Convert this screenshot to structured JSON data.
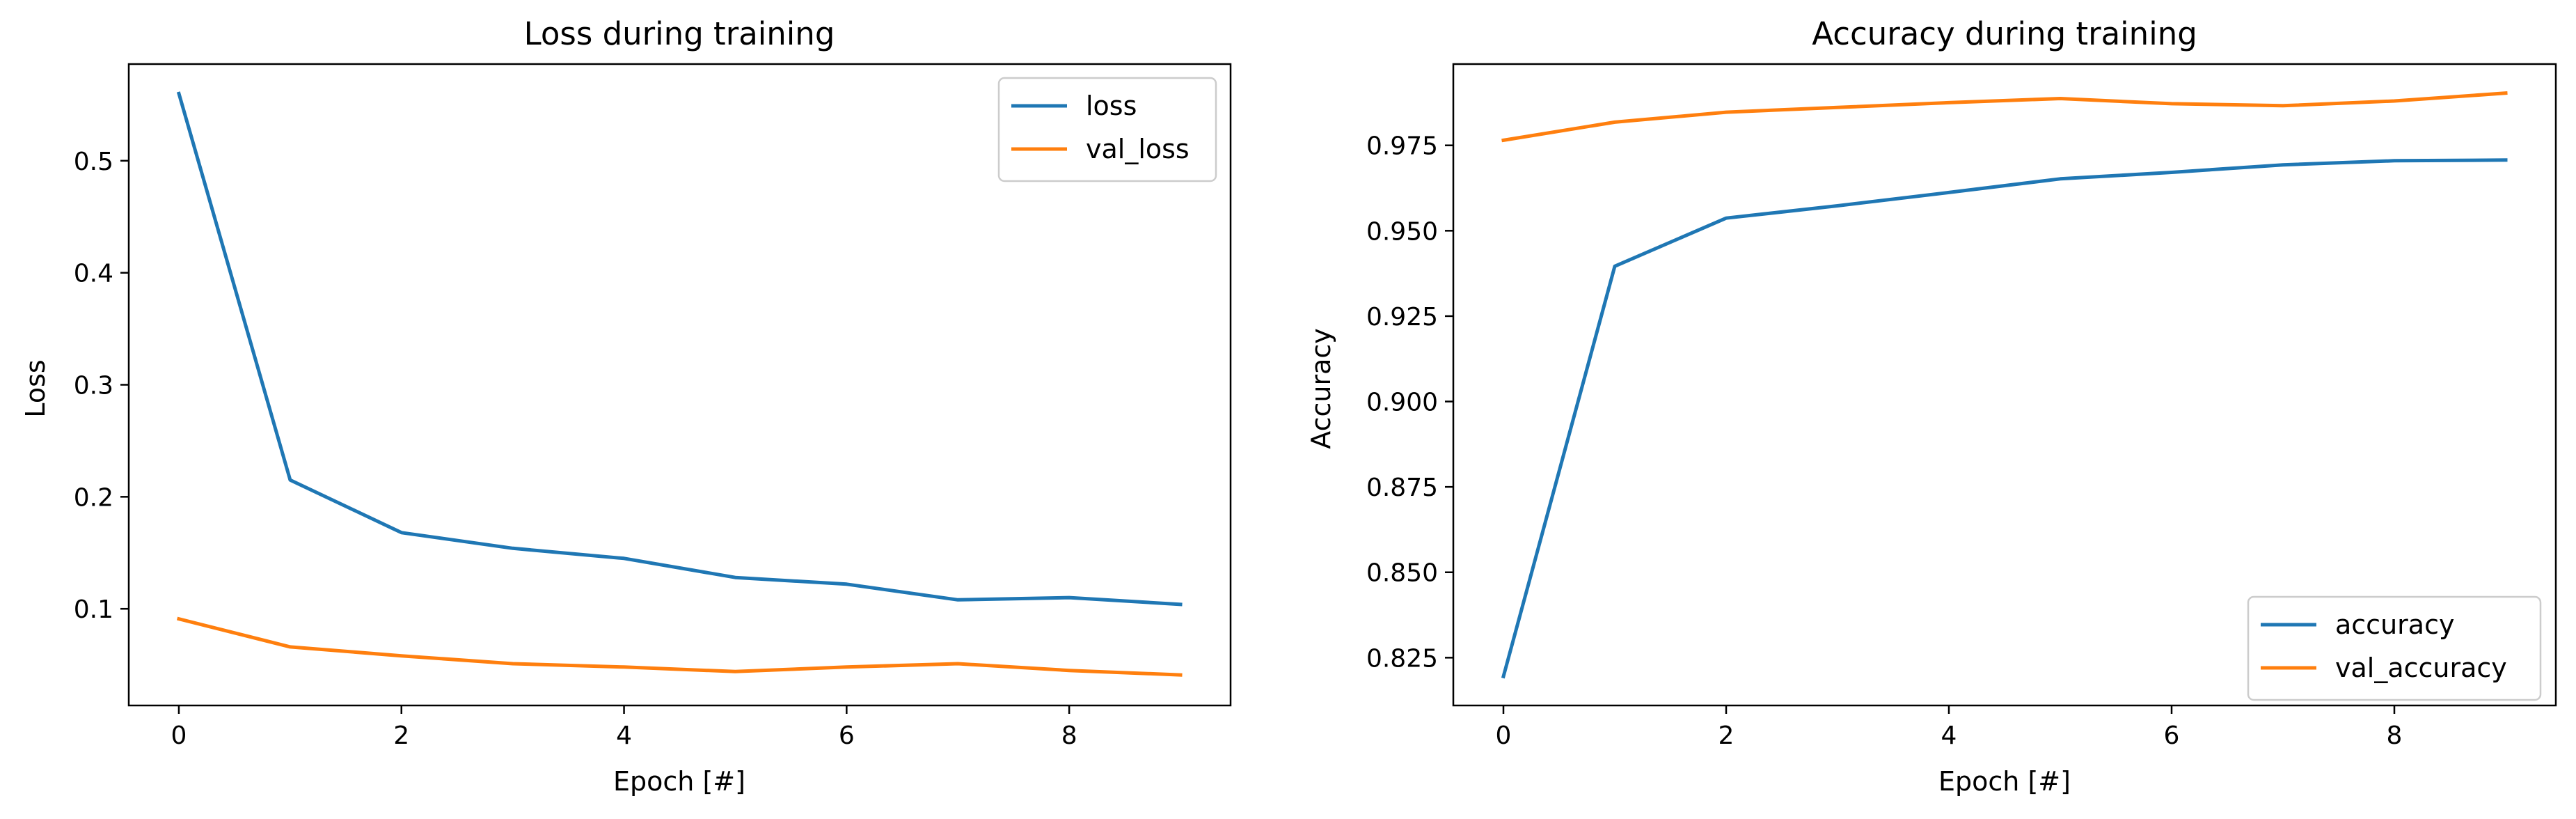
{
  "chart_data": [
    {
      "type": "line",
      "title": "Loss during training",
      "xlabel": "Epoch [#]",
      "ylabel": "Loss",
      "x": [
        0,
        1,
        2,
        3,
        4,
        5,
        6,
        7,
        8,
        9
      ],
      "series": [
        {
          "name": "loss",
          "color": "#1f77b4",
          "values": [
            0.56,
            0.215,
            0.168,
            0.154,
            0.145,
            0.128,
            0.122,
            0.108,
            0.11,
            0.104
          ]
        },
        {
          "name": "val_loss",
          "color": "#ff7f0e",
          "values": [
            0.091,
            0.066,
            0.058,
            0.051,
            0.048,
            0.044,
            0.048,
            0.051,
            0.045,
            0.041
          ]
        }
      ],
      "xlim": [
        -0.45,
        9.45
      ],
      "ylim": [
        0.0137,
        0.5863
      ],
      "xticks": [
        0,
        2,
        4,
        6,
        8
      ],
      "xtick_labels": [
        "0",
        "2",
        "4",
        "6",
        "8"
      ],
      "yticks": [
        0.1,
        0.2,
        0.3,
        0.4,
        0.5
      ],
      "ytick_labels": [
        "0.1",
        "0.2",
        "0.3",
        "0.4",
        "0.5"
      ],
      "legend_position": "top-right",
      "grid": false
    },
    {
      "type": "line",
      "title": "Accuracy during training",
      "xlabel": "Epoch [#]",
      "ylabel": "Accuracy",
      "x": [
        0,
        1,
        2,
        3,
        4,
        5,
        6,
        7,
        8,
        9
      ],
      "series": [
        {
          "name": "accuracy",
          "color": "#1f77b4",
          "values": [
            0.8195,
            0.9396,
            0.9537,
            0.9573,
            0.9612,
            0.9652,
            0.9671,
            0.9693,
            0.9705,
            0.9707
          ]
        },
        {
          "name": "val_accuracy",
          "color": "#ff7f0e",
          "values": [
            0.9765,
            0.9818,
            0.9847,
            0.9861,
            0.9875,
            0.9887,
            0.9872,
            0.9866,
            0.988,
            0.9903
          ]
        }
      ],
      "xlim": [
        -0.45,
        9.45
      ],
      "ylim": [
        0.811,
        0.9988
      ],
      "xticks": [
        0,
        2,
        4,
        6,
        8
      ],
      "xtick_labels": [
        "0",
        "2",
        "4",
        "6",
        "8"
      ],
      "yticks": [
        0.825,
        0.85,
        0.875,
        0.9,
        0.925,
        0.95,
        0.975
      ],
      "ytick_labels": [
        "0.825",
        "0.850",
        "0.875",
        "0.900",
        "0.925",
        "0.950",
        "0.975"
      ],
      "legend_position": "bottom-right",
      "grid": false
    }
  ]
}
